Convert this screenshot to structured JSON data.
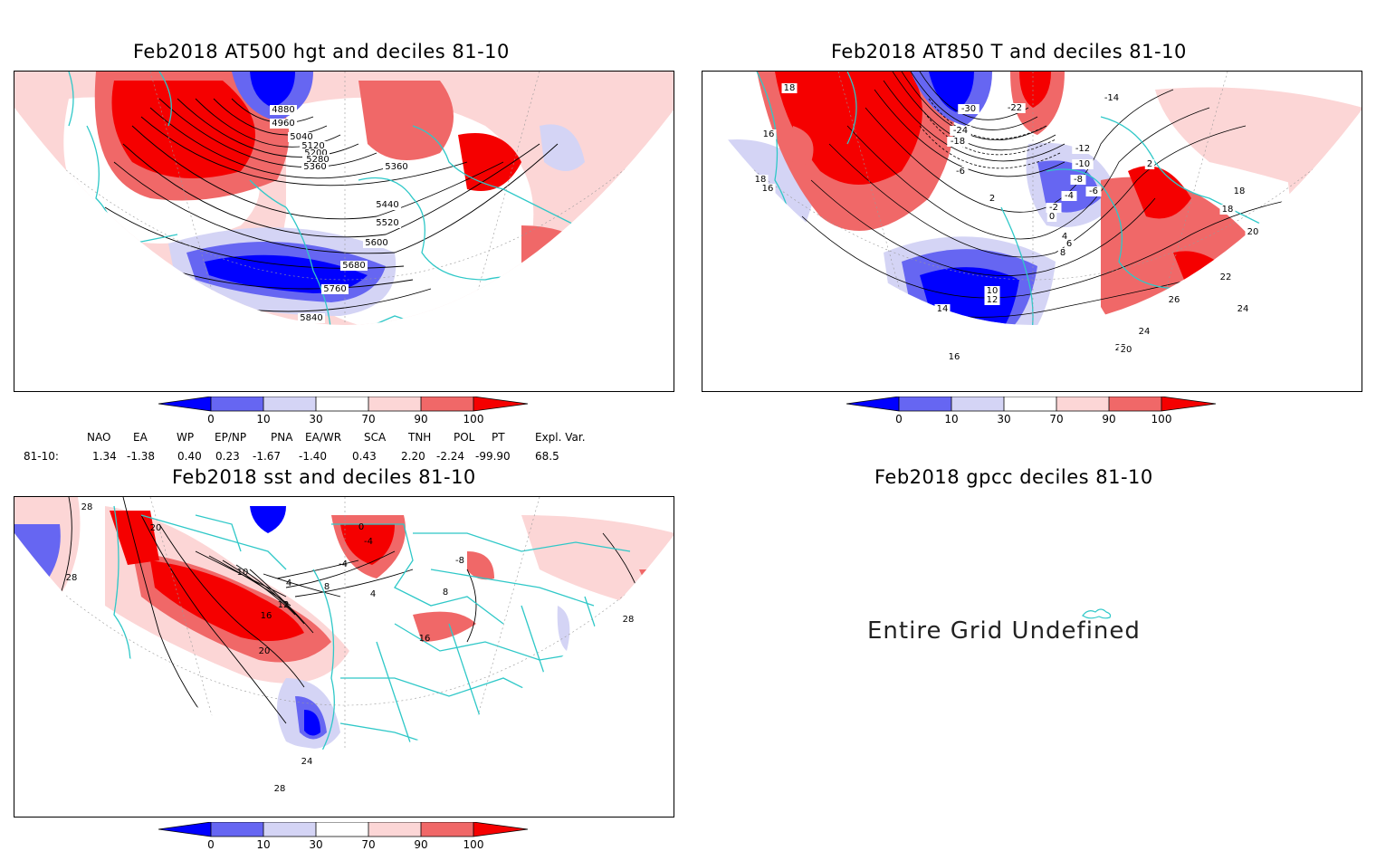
{
  "panels": {
    "hgt": {
      "title": "Feb2018 AT500 hgt and deciles 81-10",
      "contour_labels": [
        "4880",
        "4960",
        "5040",
        "5120",
        "5200",
        "5280",
        "5360",
        "5360",
        "5440",
        "5520",
        "5600",
        "5680",
        "5760",
        "5840"
      ]
    },
    "t850": {
      "title": "Feb2018 AT850 T and deciles 81-10",
      "contour_labels": [
        "-30",
        "-22",
        "-24",
        "-18",
        "-6",
        "2",
        "-12",
        "-10",
        "-8",
        "-4",
        "-6",
        "-2",
        "0",
        "4",
        "6",
        "8",
        "10",
        "12",
        "14",
        "16",
        "16",
        "16",
        "18",
        "18",
        "18",
        "18",
        "20",
        "22",
        "22",
        "20",
        "24",
        "24",
        "26",
        "2",
        "-14"
      ]
    },
    "sst": {
      "title": "Feb2018 sst and deciles 81-10",
      "contour_labels": [
        "28",
        "20",
        "28",
        "0",
        "10",
        "4",
        "-4",
        "8",
        "12",
        "16",
        "20",
        "24",
        "28",
        "28",
        "4",
        "8",
        "-8",
        "16",
        "-4"
      ]
    },
    "gpcc": {
      "title": "Feb2018 gpcc deciles 81-10",
      "message": "Entire Grid Undefined"
    }
  },
  "colorbar": {
    "labels": [
      "0",
      "10",
      "30",
      "70",
      "90",
      "100"
    ],
    "colors": [
      "#0000ff",
      "#6666f2",
      "#d4d4f5",
      "#ffffff",
      "#fcd6d6",
      "#f06868",
      "#f50000"
    ]
  },
  "indices": {
    "headers": [
      "NAO",
      "EA",
      "WP",
      "EP/NP",
      "PNA",
      "EA/WR",
      "SCA",
      "TNH",
      "POL",
      "PT",
      "Expl. Var."
    ],
    "row_label": "81-10:",
    "values": [
      "1.34",
      "-1.38",
      "0.40",
      "0.23",
      "-1.67",
      "-1.40",
      "0.43",
      "2.20",
      "-2.24",
      "-99.90",
      "68.5"
    ]
  },
  "colors": {
    "coast": "#2fc8c8",
    "contour": "#000000",
    "frame": "#000000"
  }
}
